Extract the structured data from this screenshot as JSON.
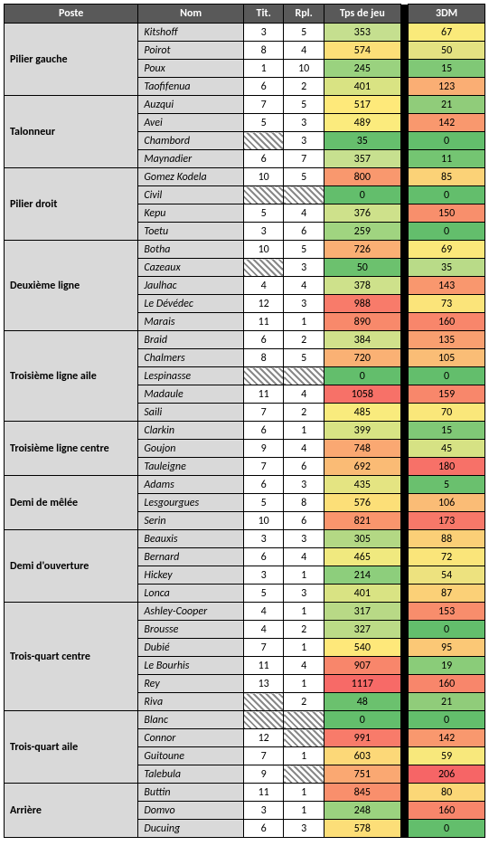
{
  "headers": {
    "poste": "Poste",
    "nom": "Nom",
    "tit": "Tit.",
    "rpl": "Rpl.",
    "tps": "Tps de jeu",
    "dm": "3DM"
  },
  "groups": [
    {
      "poste": "Pilier gauche",
      "rows": [
        {
          "nom": "Kitshoff",
          "tit": 3,
          "rpl": 5,
          "tps": 353,
          "tps_c": "#c5df8f",
          "dm": 67,
          "dm_c": "#faea7a"
        },
        {
          "nom": "Poirot",
          "tit": 8,
          "rpl": 4,
          "tps": 574,
          "tps_c": "#fcdf78",
          "dm": 50,
          "dm_c": "#e4e282"
        },
        {
          "nom": "Poux",
          "tit": 1,
          "rpl": 10,
          "tps": 245,
          "tps_c": "#9ad27f",
          "dm": 15,
          "dm_c": "#80c876"
        },
        {
          "nom": "Taofifenua",
          "tit": 6,
          "rpl": 2,
          "tps": 401,
          "tps_c": "#d9e383",
          "dm": 123,
          "dm_c": "#faae74"
        }
      ]
    },
    {
      "poste": "Talonneur",
      "rows": [
        {
          "nom": "Auzqui",
          "tit": 7,
          "rpl": 5,
          "tps": 517,
          "tps_c": "#fee97a",
          "dm": 21,
          "dm_c": "#90cc7a"
        },
        {
          "nom": "Avei",
          "tit": 5,
          "rpl": 3,
          "tps": 489,
          "tps_c": "#fbeb7d",
          "dm": 142,
          "dm_c": "#f9986e"
        },
        {
          "nom": "Chambord",
          "tit": null,
          "rpl": 3,
          "tps": 35,
          "tps_c": "#66bf6d",
          "dm": 0,
          "dm_c": "#63be6c"
        },
        {
          "nom": "Maynadier",
          "tit": 6,
          "rpl": 7,
          "tps": 357,
          "tps_c": "#c7e08f",
          "dm": 11,
          "dm_c": "#74c572"
        }
      ]
    },
    {
      "poste": "Pilier droit",
      "rows": [
        {
          "nom": "Gomez Kodela",
          "tit": 10,
          "rpl": 5,
          "tps": 800,
          "tps_c": "#f9986e",
          "dm": 85,
          "dm_c": "#fbd277"
        },
        {
          "nom": "Civil",
          "tit": null,
          "rpl": null,
          "tps": 0,
          "tps_c": "#63be6c",
          "dm": 0,
          "dm_c": "#63be6c"
        },
        {
          "nom": "Kepu",
          "tit": 5,
          "rpl": 4,
          "tps": 376,
          "tps_c": "#cee18b",
          "dm": 150,
          "dm_c": "#f88f6c"
        },
        {
          "nom": "Toetu",
          "tit": 3,
          "rpl": 6,
          "tps": 259,
          "tps_c": "#a0d480",
          "dm": 0,
          "dm_c": "#63be6c"
        }
      ]
    },
    {
      "poste": "Deuxième ligne",
      "rows": [
        {
          "nom": "Botha",
          "tit": 10,
          "rpl": 5,
          "tps": 726,
          "tps_c": "#faaf74",
          "dm": 69,
          "dm_c": "#fbe87a"
        },
        {
          "nom": "Cazeaux",
          "tit": null,
          "rpl": 3,
          "tps": 50,
          "tps_c": "#6cc16e",
          "dm": 35,
          "dm_c": "#b9db88"
        },
        {
          "nom": "Jaulhac",
          "tit": 4,
          "rpl": 4,
          "tps": 378,
          "tps_c": "#cee18b",
          "dm": 143,
          "dm_c": "#f9976e"
        },
        {
          "nom": "Le Dévédec",
          "tit": 12,
          "rpl": 3,
          "tps": 988,
          "tps_c": "#f87b6a",
          "dm": 73,
          "dm_c": "#fbe47a"
        },
        {
          "nom": "Marais",
          "tit": 11,
          "rpl": 1,
          "tps": 890,
          "tps_c": "#f8896b",
          "dm": 160,
          "dm_c": "#f8866b"
        }
      ]
    },
    {
      "poste": "Troisième ligne aile",
      "rows": [
        {
          "nom": "Braid",
          "tit": 6,
          "rpl": 2,
          "tps": 384,
          "tps_c": "#d1e18b",
          "dm": 135,
          "dm_c": "#f99f70"
        },
        {
          "nom": "Chalmers",
          "tit": 8,
          "rpl": 5,
          "tps": 720,
          "tps_c": "#fab174",
          "dm": 105,
          "dm_c": "#fabd76"
        },
        {
          "nom": "Lespinasse",
          "tit": null,
          "rpl": null,
          "tps": 0,
          "tps_c": "#63be6c",
          "dm": 0,
          "dm_c": "#63be6c"
        },
        {
          "nom": "Madaule",
          "tit": 11,
          "rpl": 4,
          "tps": 1058,
          "tps_c": "#f77168",
          "dm": 159,
          "dm_c": "#f8876b"
        },
        {
          "nom": "Saili",
          "tit": 7,
          "rpl": 2,
          "tps": 485,
          "tps_c": "#f9eb7d",
          "dm": 70,
          "dm_c": "#fae77a"
        }
      ]
    },
    {
      "poste": "Troisième ligne centre",
      "rows": [
        {
          "nom": "Clarkin",
          "tit": 6,
          "rpl": 1,
          "tps": 399,
          "tps_c": "#d8e384",
          "dm": 15,
          "dm_c": "#80c876"
        },
        {
          "nom": "Goujon",
          "tit": 9,
          "rpl": 4,
          "tps": 748,
          "tps_c": "#faa872",
          "dm": 45,
          "dm_c": "#d6e284"
        },
        {
          "nom": "Tauleigne",
          "tit": 7,
          "rpl": 6,
          "tps": 692,
          "tps_c": "#fabb75",
          "dm": 180,
          "dm_c": "#f77168"
        }
      ]
    },
    {
      "poste": "Demi de mêlée",
      "rows": [
        {
          "nom": "Adams",
          "tit": 6,
          "rpl": 3,
          "tps": 435,
          "tps_c": "#e4e482",
          "dm": 5,
          "dm_c": "#6ac06e"
        },
        {
          "nom": "Lesgourgues",
          "tit": 5,
          "rpl": 8,
          "tps": 576,
          "tps_c": "#fcdf78",
          "dm": 106,
          "dm_c": "#fabc76"
        },
        {
          "nom": "Serin",
          "tit": 10,
          "rpl": 6,
          "tps": 821,
          "tps_c": "#f9956d",
          "dm": 173,
          "dm_c": "#f77869"
        }
      ]
    },
    {
      "poste": "Demi d'ouverture",
      "rows": [
        {
          "nom": "Beauxis",
          "tit": 3,
          "rpl": 3,
          "tps": 305,
          "tps_c": "#b3d884",
          "dm": 88,
          "dm_c": "#fbcf77"
        },
        {
          "nom": "Bernard",
          "tit": 6,
          "rpl": 4,
          "tps": 465,
          "tps_c": "#f0e97f",
          "dm": 72,
          "dm_c": "#fae57a"
        },
        {
          "nom": "Hickey",
          "tit": 3,
          "rpl": 1,
          "tps": 214,
          "tps_c": "#8dce7c",
          "dm": 54,
          "dm_c": "#ede27f"
        },
        {
          "nom": "Lonca",
          "tit": 5,
          "rpl": 3,
          "tps": 401,
          "tps_c": "#d9e383",
          "dm": 87,
          "dm_c": "#fbd077"
        }
      ]
    },
    {
      "poste": "Trois-quart centre",
      "rows": [
        {
          "nom": "Ashley-Cooper",
          "tit": 4,
          "rpl": 1,
          "tps": 317,
          "tps_c": "#b8d986",
          "dm": 153,
          "dm_c": "#f88d6c"
        },
        {
          "nom": "Brousse",
          "tit": 4,
          "rpl": 2,
          "tps": 327,
          "tps_c": "#bcdb87",
          "dm": 0,
          "dm_c": "#63be6c"
        },
        {
          "nom": "Dubié",
          "tit": 7,
          "rpl": 1,
          "tps": 540,
          "tps_c": "#fee87a",
          "dm": 95,
          "dm_c": "#fbc876"
        },
        {
          "nom": "Le Bourhis",
          "tit": 11,
          "rpl": 4,
          "tps": 907,
          "tps_c": "#f8866b",
          "dm": 19,
          "dm_c": "#8acc79"
        },
        {
          "nom": "Rey",
          "tit": 13,
          "rpl": 1,
          "tps": 1117,
          "tps_c": "#f76a67",
          "dm": 160,
          "dm_c": "#f8866b"
        },
        {
          "nom": "Riva",
          "tit": null,
          "rpl": 2,
          "tps": 48,
          "tps_c": "#6bc16e",
          "dm": 21,
          "dm_c": "#90cc7a"
        }
      ]
    },
    {
      "poste": "Trois-quart aile",
      "rows": [
        {
          "nom": "Blanc",
          "tit": null,
          "rpl": null,
          "tps": 0,
          "tps_c": "#63be6c",
          "dm": 0,
          "dm_c": "#63be6c"
        },
        {
          "nom": "Connor",
          "tit": 12,
          "rpl": null,
          "tps": 991,
          "tps_c": "#f87b6a",
          "dm": 142,
          "dm_c": "#f9986e"
        },
        {
          "nom": "Guitoune",
          "tit": 7,
          "rpl": 1,
          "tps": 603,
          "tps_c": "#fcd878",
          "dm": 59,
          "dm_c": "#f8e87c"
        },
        {
          "nom": "Talebula",
          "tit": 9,
          "rpl": null,
          "tps": 751,
          "tps_c": "#faa872",
          "dm": 206,
          "dm_c": "#f66566"
        }
      ]
    },
    {
      "poste": "Arrière",
      "rows": [
        {
          "nom": "Buttin",
          "tit": 11,
          "rpl": 1,
          "tps": 845,
          "tps_c": "#f98f6c",
          "dm": 80,
          "dm_c": "#fbd777"
        },
        {
          "nom": "Domvo",
          "tit": 3,
          "rpl": 1,
          "tps": 248,
          "tps_c": "#9bd27f",
          "dm": 160,
          "dm_c": "#f8866b"
        },
        {
          "nom": "Ducuing",
          "tit": 6,
          "rpl": 3,
          "tps": 578,
          "tps_c": "#fcde78",
          "dm": 0,
          "dm_c": "#63be6c"
        }
      ]
    }
  ]
}
